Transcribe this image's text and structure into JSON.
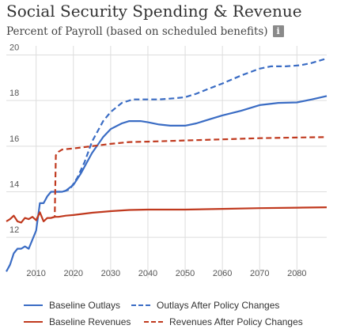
{
  "chart_data": {
    "type": "line",
    "title": "Social Security Spending & Revenue",
    "subtitle": "Percent of Payroll (based on scheduled benefits)",
    "info_icon": "info-icon",
    "xlabel": "",
    "ylabel": "",
    "xlim": [
      2002,
      2088
    ],
    "ylim": [
      10.2,
      20.4
    ],
    "x_ticks": [
      2010,
      2020,
      2030,
      2040,
      2050,
      2060,
      2070,
      2080
    ],
    "y_ticks": [
      12,
      14,
      16,
      18,
      20
    ],
    "grid": true,
    "legend_position": "bottom",
    "colors": {
      "outlays": "#3a6cc4",
      "revenues": "#c0391e",
      "grid": "#dddddd"
    },
    "series": [
      {
        "name": "Baseline Outlays",
        "style": "solid",
        "color": "#3a6cc4",
        "points": [
          [
            2002,
            10.5
          ],
          [
            2003,
            10.8
          ],
          [
            2004,
            11.3
          ],
          [
            2005,
            11.5
          ],
          [
            2006,
            11.5
          ],
          [
            2007,
            11.6
          ],
          [
            2008,
            11.5
          ],
          [
            2009,
            11.9
          ],
          [
            2010,
            12.3
          ],
          [
            2011,
            13.5
          ],
          [
            2012,
            13.5
          ],
          [
            2013,
            13.8
          ],
          [
            2014,
            14.0
          ],
          [
            2015,
            14.0
          ],
          [
            2016,
            14.0
          ],
          [
            2017,
            14.0
          ],
          [
            2018,
            14.05
          ],
          [
            2020,
            14.3
          ],
          [
            2022,
            14.8
          ],
          [
            2025,
            15.7
          ],
          [
            2028,
            16.4
          ],
          [
            2030,
            16.75
          ],
          [
            2033,
            17.0
          ],
          [
            2035,
            17.1
          ],
          [
            2038,
            17.1
          ],
          [
            2040,
            17.05
          ],
          [
            2043,
            16.95
          ],
          [
            2046,
            16.9
          ],
          [
            2050,
            16.9
          ],
          [
            2053,
            17.0
          ],
          [
            2057,
            17.2
          ],
          [
            2060,
            17.35
          ],
          [
            2065,
            17.55
          ],
          [
            2070,
            17.8
          ],
          [
            2075,
            17.9
          ],
          [
            2080,
            17.92
          ],
          [
            2084,
            18.05
          ],
          [
            2088,
            18.2
          ]
        ]
      },
      {
        "name": "Outlays After Policy Changes",
        "style": "dashed",
        "color": "#3a6cc4",
        "points": [
          [
            2015,
            14.0
          ],
          [
            2017,
            14.0
          ],
          [
            2019,
            14.1
          ],
          [
            2021,
            14.6
          ],
          [
            2023,
            15.3
          ],
          [
            2025,
            16.2
          ],
          [
            2028,
            17.1
          ],
          [
            2030,
            17.5
          ],
          [
            2033,
            17.9
          ],
          [
            2036,
            18.05
          ],
          [
            2040,
            18.05
          ],
          [
            2043,
            18.05
          ],
          [
            2047,
            18.1
          ],
          [
            2050,
            18.15
          ],
          [
            2053,
            18.3
          ],
          [
            2056,
            18.5
          ],
          [
            2060,
            18.75
          ],
          [
            2065,
            19.1
          ],
          [
            2070,
            19.4
          ],
          [
            2073,
            19.5
          ],
          [
            2077,
            19.5
          ],
          [
            2081,
            19.55
          ],
          [
            2084,
            19.65
          ],
          [
            2088,
            19.85
          ]
        ]
      },
      {
        "name": "Baseline Revenues",
        "style": "solid",
        "color": "#c0391e",
        "points": [
          [
            2002,
            12.7
          ],
          [
            2003,
            12.8
          ],
          [
            2004,
            12.95
          ],
          [
            2005,
            12.7
          ],
          [
            2006,
            12.65
          ],
          [
            2007,
            12.85
          ],
          [
            2008,
            12.8
          ],
          [
            2009,
            12.9
          ],
          [
            2010,
            12.75
          ],
          [
            2011,
            13.1
          ],
          [
            2012,
            12.7
          ],
          [
            2013,
            12.85
          ],
          [
            2014,
            12.85
          ],
          [
            2015,
            12.9
          ],
          [
            2016,
            12.9
          ],
          [
            2018,
            12.95
          ],
          [
            2020,
            12.98
          ],
          [
            2025,
            13.08
          ],
          [
            2030,
            13.15
          ],
          [
            2035,
            13.2
          ],
          [
            2040,
            13.22
          ],
          [
            2050,
            13.22
          ],
          [
            2060,
            13.25
          ],
          [
            2070,
            13.28
          ],
          [
            2080,
            13.3
          ],
          [
            2088,
            13.32
          ]
        ]
      },
      {
        "name": "Revenues After Policy Changes",
        "style": "dashed",
        "color": "#c0391e",
        "points": [
          [
            2014,
            12.85
          ],
          [
            2015,
            12.9
          ],
          [
            2015.3,
            15.6
          ],
          [
            2016,
            15.75
          ],
          [
            2017,
            15.85
          ],
          [
            2020,
            15.9
          ],
          [
            2025,
            16.0
          ],
          [
            2030,
            16.1
          ],
          [
            2035,
            16.18
          ],
          [
            2040,
            16.2
          ],
          [
            2050,
            16.25
          ],
          [
            2060,
            16.3
          ],
          [
            2070,
            16.35
          ],
          [
            2080,
            16.38
          ],
          [
            2088,
            16.4
          ]
        ]
      }
    ]
  }
}
